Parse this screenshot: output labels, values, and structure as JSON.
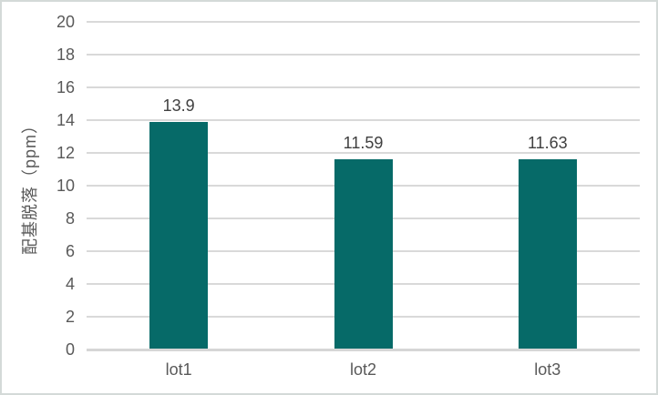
{
  "chart_data": {
    "type": "bar",
    "categories": [
      "lot1",
      "lot2",
      "lot3"
    ],
    "values": [
      13.9,
      11.59,
      11.63
    ],
    "data_labels": [
      "13.9",
      "11.59",
      "11.63"
    ],
    "title": "",
    "xlabel": "",
    "ylabel": "配基脱落（ppm）",
    "ylim": [
      0,
      20
    ],
    "ytick_step": 2,
    "ytick_labels": [
      "0",
      "2",
      "4",
      "6",
      "8",
      "10",
      "12",
      "14",
      "16",
      "18",
      "20"
    ],
    "grid": true,
    "legend_position": "none",
    "colors": {
      "bar_fill": "#066a68",
      "gridline": "#d9d9d9",
      "axis_line": "#d6d6d6",
      "tick_label_text": "#595959",
      "data_label_text": "#404040",
      "category_label_text": "#595959",
      "y_title_text": "#595959",
      "frame_border": "#d4dad8",
      "background": "#ffffff"
    }
  }
}
